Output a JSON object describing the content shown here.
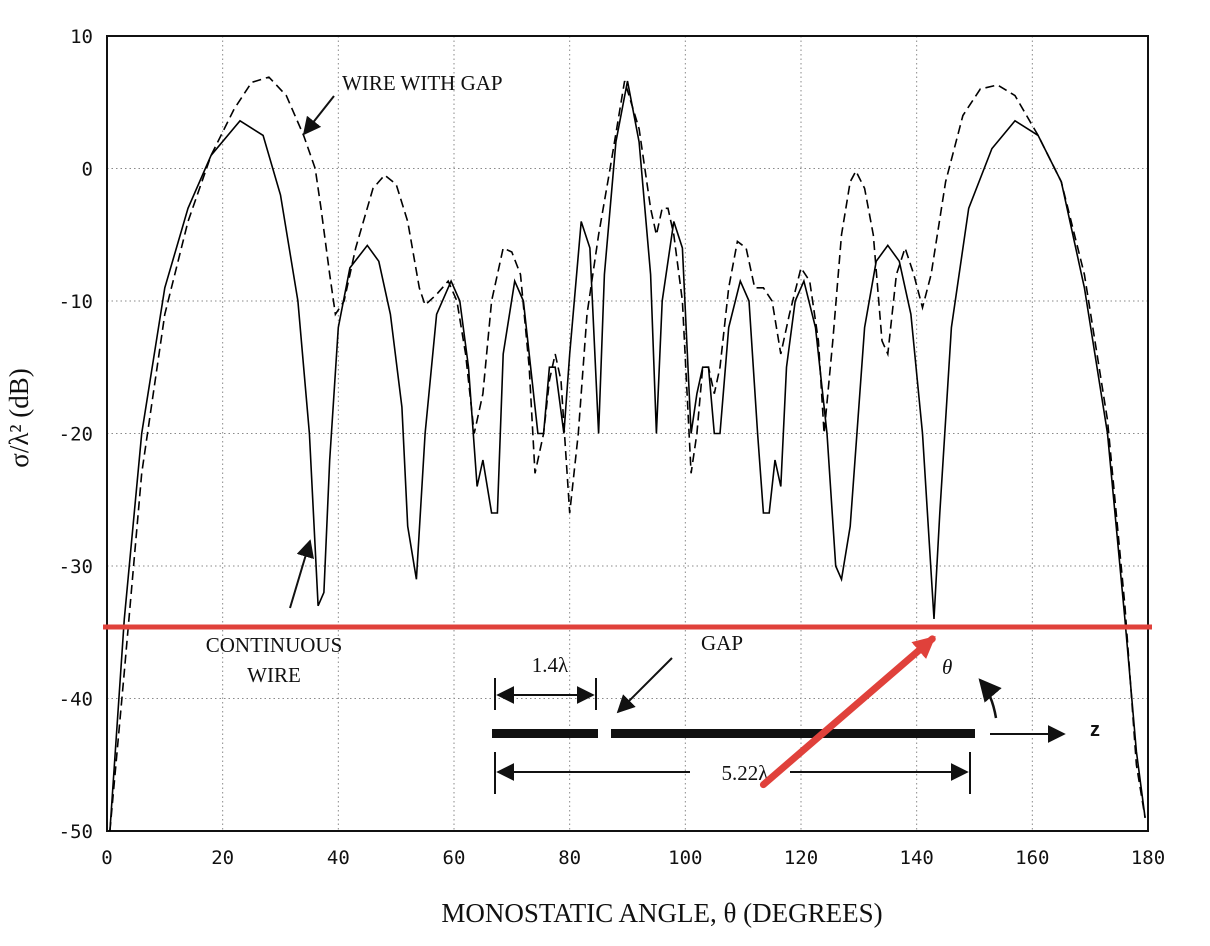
{
  "chart_data": {
    "type": "line",
    "xlabel": "MONOSTATIC ANGLE, θ (DEGREES)",
    "ylabel": "σ/λ² (dB)",
    "xlim": [
      0,
      180
    ],
    "ylim": [
      -50,
      10
    ],
    "x_ticks": [
      "0",
      "20",
      "40",
      "60",
      "80",
      "100",
      "120",
      "140",
      "160",
      "180"
    ],
    "y_ticks": [
      "10",
      "0",
      "-10",
      "-20",
      "-30",
      "-40",
      "-50"
    ],
    "grid": true,
    "series": [
      {
        "label": "CONTINUOUS WIRE",
        "style": "solid",
        "points": [
          [
            0.5,
            -50
          ],
          [
            3,
            -34
          ],
          [
            6,
            -20
          ],
          [
            10,
            -9
          ],
          [
            14,
            -3
          ],
          [
            18,
            1
          ],
          [
            23,
            3.6
          ],
          [
            27,
            2.5
          ],
          [
            30,
            -2
          ],
          [
            33,
            -10
          ],
          [
            35,
            -20
          ],
          [
            36.5,
            -33
          ],
          [
            37.5,
            -32
          ],
          [
            38.5,
            -22
          ],
          [
            40,
            -12
          ],
          [
            42,
            -7.5
          ],
          [
            45,
            -5.8
          ],
          [
            47,
            -7
          ],
          [
            49,
            -11
          ],
          [
            51,
            -18
          ],
          [
            52,
            -27
          ],
          [
            53.5,
            -31
          ],
          [
            55,
            -20
          ],
          [
            57,
            -11
          ],
          [
            59.5,
            -8.5
          ],
          [
            61,
            -10
          ],
          [
            62.5,
            -15
          ],
          [
            64,
            -24
          ],
          [
            65,
            -22
          ],
          [
            66.5,
            -26
          ],
          [
            67.5,
            -26
          ],
          [
            68.5,
            -14
          ],
          [
            70.5,
            -8.5
          ],
          [
            72,
            -10
          ],
          [
            73.5,
            -16
          ],
          [
            74.5,
            -20
          ],
          [
            75.5,
            -20
          ],
          [
            76.5,
            -15
          ],
          [
            77.5,
            -15
          ],
          [
            79,
            -20
          ],
          [
            80,
            -14
          ],
          [
            82,
            -4
          ],
          [
            83.5,
            -6
          ],
          [
            85,
            -20
          ],
          [
            86,
            -8
          ],
          [
            88,
            2
          ],
          [
            90,
            6.6
          ],
          [
            92,
            2
          ],
          [
            94,
            -8
          ],
          [
            95,
            -20
          ],
          [
            96,
            -10
          ],
          [
            98,
            -4
          ],
          [
            99.5,
            -6
          ],
          [
            101,
            -20
          ],
          [
            102,
            -17
          ],
          [
            103,
            -15
          ],
          [
            104,
            -15
          ],
          [
            105,
            -20
          ],
          [
            106,
            -20
          ],
          [
            107.5,
            -12
          ],
          [
            109.5,
            -8.5
          ],
          [
            111,
            -10
          ],
          [
            112.5,
            -20
          ],
          [
            113.5,
            -26
          ],
          [
            114.5,
            -26
          ],
          [
            115.5,
            -22
          ],
          [
            116.5,
            -24
          ],
          [
            117.5,
            -15
          ],
          [
            119,
            -10
          ],
          [
            120.5,
            -8.5
          ],
          [
            122.5,
            -12
          ],
          [
            124.5,
            -20
          ],
          [
            126,
            -30
          ],
          [
            127,
            -31
          ],
          [
            128.5,
            -27
          ],
          [
            131,
            -12
          ],
          [
            133,
            -7
          ],
          [
            135,
            -5.8
          ],
          [
            137,
            -7
          ],
          [
            139,
            -11
          ],
          [
            141,
            -20
          ],
          [
            143,
            -34
          ],
          [
            144,
            -26
          ],
          [
            146,
            -12
          ],
          [
            149,
            -3
          ],
          [
            153,
            1.5
          ],
          [
            157,
            3.6
          ],
          [
            161,
            2.5
          ],
          [
            165,
            -1
          ],
          [
            169,
            -9
          ],
          [
            173,
            -20
          ],
          [
            176,
            -34
          ],
          [
            178,
            -44
          ],
          [
            179.5,
            -49
          ]
        ]
      },
      {
        "label": "WIRE WITH GAP",
        "style": "dashed",
        "points": [
          [
            0.5,
            -50
          ],
          [
            3,
            -38
          ],
          [
            6,
            -23
          ],
          [
            10,
            -11
          ],
          [
            14,
            -4
          ],
          [
            18,
            1
          ],
          [
            22,
            4.5
          ],
          [
            25,
            6.5
          ],
          [
            28,
            6.9
          ],
          [
            31,
            5.5
          ],
          [
            34,
            2.5
          ],
          [
            36,
            0
          ],
          [
            37,
            -3
          ],
          [
            38.5,
            -8
          ],
          [
            39.5,
            -11
          ],
          [
            41,
            -10
          ],
          [
            43,
            -6
          ],
          [
            46,
            -1.5
          ],
          [
            48,
            -0.5
          ],
          [
            50,
            -1.2
          ],
          [
            52,
            -4
          ],
          [
            54,
            -9
          ],
          [
            55,
            -10.3
          ],
          [
            57,
            -9.5
          ],
          [
            59,
            -8.5
          ],
          [
            60.5,
            -10
          ],
          [
            62,
            -14
          ],
          [
            63.5,
            -20
          ],
          [
            65,
            -17
          ],
          [
            66.5,
            -10
          ],
          [
            68.5,
            -6
          ],
          [
            70,
            -6.3
          ],
          [
            71.5,
            -8
          ],
          [
            73,
            -15
          ],
          [
            74,
            -23
          ],
          [
            75.5,
            -20
          ],
          [
            76.5,
            -16
          ],
          [
            77.5,
            -14
          ],
          [
            78.5,
            -16
          ],
          [
            80,
            -26
          ],
          [
            81.5,
            -20
          ],
          [
            83,
            -11
          ],
          [
            85,
            -5
          ],
          [
            87,
            0
          ],
          [
            89.5,
            6.6
          ],
          [
            92,
            3
          ],
          [
            94,
            -3
          ],
          [
            95,
            -5
          ],
          [
            96,
            -3
          ],
          [
            97,
            -3
          ],
          [
            98,
            -5
          ],
          [
            99.5,
            -10
          ],
          [
            101,
            -23
          ],
          [
            102,
            -20
          ],
          [
            103,
            -15
          ],
          [
            104,
            -15
          ],
          [
            105,
            -17
          ],
          [
            106,
            -15
          ],
          [
            107.5,
            -9
          ],
          [
            109,
            -5.5
          ],
          [
            110.5,
            -6
          ],
          [
            112,
            -9
          ],
          [
            113.5,
            -9
          ],
          [
            115,
            -10
          ],
          [
            116.5,
            -14
          ],
          [
            118,
            -11
          ],
          [
            120,
            -7.5
          ],
          [
            121.5,
            -8.5
          ],
          [
            123,
            -13
          ],
          [
            124,
            -20
          ],
          [
            125.5,
            -13
          ],
          [
            127,
            -5
          ],
          [
            128.5,
            -1
          ],
          [
            129.5,
            -0.2
          ],
          [
            131,
            -1.5
          ],
          [
            132.5,
            -5
          ],
          [
            134,
            -13
          ],
          [
            135,
            -14
          ],
          [
            136.5,
            -8
          ],
          [
            138,
            -6
          ],
          [
            139.5,
            -8
          ],
          [
            141,
            -10.5
          ],
          [
            142.5,
            -8
          ],
          [
            145,
            -1
          ],
          [
            148,
            4
          ],
          [
            151,
            6
          ],
          [
            154,
            6.3
          ],
          [
            157,
            5.5
          ],
          [
            161,
            2.5
          ],
          [
            165,
            -1
          ],
          [
            169,
            -8
          ],
          [
            173,
            -19
          ],
          [
            176,
            -33
          ],
          [
            178,
            -45
          ],
          [
            179.5,
            -49
          ]
        ]
      }
    ],
    "annotations": {
      "wire_with_gap": "WIRE WITH GAP",
      "continuous_line1": "CONTINUOUS",
      "continuous_line2": "WIRE",
      "gap": "GAP",
      "dim_short": "1.4λ",
      "dim_long": "5.22λ",
      "theta": "θ",
      "z_axis": "z"
    },
    "overlay": {
      "color": "#e0413b",
      "horizontal_line_value_db": -34.6,
      "arrow_tip_value": [
        142.7,
        -35.5
      ]
    }
  }
}
